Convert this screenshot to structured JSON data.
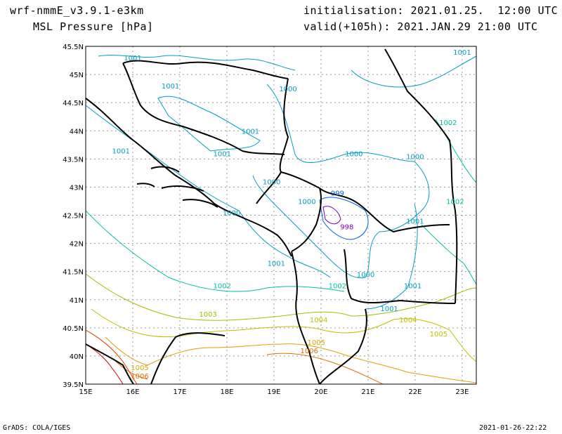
{
  "header": {
    "model": "wrf-nmmE_v3.9.1-e3km",
    "field": "MSL Pressure [hPa]",
    "init": "initialisation: 2021.01.25.  12:00 UTC",
    "valid": "valid(+105h): 2021.JAN.29 21:00 UTC"
  },
  "footer": {
    "left": "GrADS: COLA/IGES",
    "right": "2021-01-26-22:22"
  },
  "map": {
    "lon_range": [
      15,
      23.3
    ],
    "lat_range": [
      39.5,
      45.5
    ],
    "lon_ticks": [
      "15E",
      "16E",
      "17E",
      "18E",
      "19E",
      "20E",
      "21E",
      "22E",
      "23E"
    ],
    "lat_ticks": [
      "45.5N",
      "45N",
      "44.5N",
      "44N",
      "43.5N",
      "43N",
      "42.5N",
      "42N",
      "41.5N",
      "41N",
      "40.5N",
      "40N",
      "39.5N"
    ],
    "contour_labels": [
      {
        "text": "1001",
        "lon": 16.0,
        "lat": 45.25,
        "color": "#00a0c0"
      },
      {
        "text": "1001",
        "lon": 16.8,
        "lat": 44.75,
        "color": "#00a0c0"
      },
      {
        "text": "1000",
        "lon": 19.3,
        "lat": 44.7,
        "color": "#00a0c0"
      },
      {
        "text": "1001",
        "lon": 23.0,
        "lat": 45.35,
        "color": "#00a0c0"
      },
      {
        "text": "1002",
        "lon": 22.7,
        "lat": 44.1,
        "color": "#00c0a0"
      },
      {
        "text": "1001",
        "lon": 18.5,
        "lat": 43.95,
        "color": "#00a0c0"
      },
      {
        "text": "1001",
        "lon": 15.75,
        "lat": 43.6,
        "color": "#00a0c0"
      },
      {
        "text": "1001",
        "lon": 17.9,
        "lat": 43.55,
        "color": "#00a0c0"
      },
      {
        "text": "1000",
        "lon": 20.7,
        "lat": 43.55,
        "color": "#00a0c0"
      },
      {
        "text": "1000",
        "lon": 22.0,
        "lat": 43.5,
        "color": "#00a0c0"
      },
      {
        "text": "1000",
        "lon": 18.95,
        "lat": 43.05,
        "color": "#00a0c0"
      },
      {
        "text": "999",
        "lon": 20.35,
        "lat": 42.85,
        "color": "#0060e0"
      },
      {
        "text": "1002",
        "lon": 22.85,
        "lat": 42.7,
        "color": "#00c0a0"
      },
      {
        "text": "1000",
        "lon": 19.7,
        "lat": 42.7,
        "color": "#00a0c0"
      },
      {
        "text": "1000",
        "lon": 18.1,
        "lat": 42.5,
        "color": "#00a0c0"
      },
      {
        "text": "998",
        "lon": 20.55,
        "lat": 42.25,
        "color": "#8000c0"
      },
      {
        "text": "1001",
        "lon": 22.0,
        "lat": 42.35,
        "color": "#00a0c0"
      },
      {
        "text": "1001",
        "lon": 19.05,
        "lat": 41.6,
        "color": "#00a0c0"
      },
      {
        "text": "1000",
        "lon": 20.95,
        "lat": 41.4,
        "color": "#00a0c0"
      },
      {
        "text": "1002",
        "lon": 17.9,
        "lat": 41.2,
        "color": "#00c0a0"
      },
      {
        "text": "1002",
        "lon": 20.35,
        "lat": 41.2,
        "color": "#00c0a0"
      },
      {
        "text": "1001",
        "lon": 21.95,
        "lat": 41.2,
        "color": "#00a0c0"
      },
      {
        "text": "1001",
        "lon": 21.45,
        "lat": 40.8,
        "color": "#00a0c0"
      },
      {
        "text": "1003",
        "lon": 17.6,
        "lat": 40.7,
        "color": "#a0c000"
      },
      {
        "text": "1004",
        "lon": 19.95,
        "lat": 40.6,
        "color": "#c0c000"
      },
      {
        "text": "1004",
        "lon": 21.85,
        "lat": 40.6,
        "color": "#c0c000"
      },
      {
        "text": "1005",
        "lon": 22.5,
        "lat": 40.35,
        "color": "#c0c000"
      },
      {
        "text": "1005",
        "lon": 19.9,
        "lat": 40.2,
        "color": "#e0a000"
      },
      {
        "text": "1006",
        "lon": 19.75,
        "lat": 40.05,
        "color": "#e07000"
      },
      {
        "text": "1005",
        "lon": 16.15,
        "lat": 39.75,
        "color": "#e0a000"
      },
      {
        "text": "1006",
        "lon": 16.15,
        "lat": 39.6,
        "color": "#e07000"
      }
    ]
  }
}
